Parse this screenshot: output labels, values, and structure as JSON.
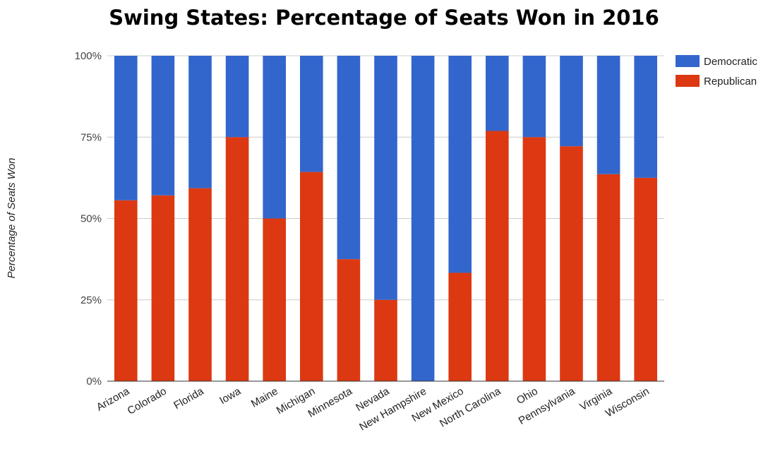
{
  "chart_data": {
    "type": "bar",
    "stacked": true,
    "title": "Swing States: Percentage of Seats Won in 2016",
    "xlabel": "",
    "ylabel": "Percentage of Seats Won",
    "ylim": [
      0,
      100
    ],
    "y_ticks": [
      "0%",
      "25%",
      "50%",
      "75%",
      "100%"
    ],
    "y_tick_values": [
      0,
      25,
      50,
      75,
      100
    ],
    "grid": true,
    "legend_position": "right",
    "categories": [
      "Arizona",
      "Colorado",
      "Florida",
      "Iowa",
      "Maine",
      "Michigan",
      "Minnesota",
      "Nevada",
      "New Hampshire",
      "New Mexico",
      "North Carolina",
      "Ohio",
      "Pennsylvania",
      "Virginia",
      "Wisconsin"
    ],
    "series": [
      {
        "name": "Republican",
        "color": "#dc3912",
        "values": [
          55.6,
          57.1,
          59.3,
          75.0,
          50.0,
          64.3,
          37.5,
          25.0,
          0.0,
          33.3,
          76.9,
          75.0,
          72.2,
          63.6,
          62.5
        ]
      },
      {
        "name": "Democratic",
        "color": "#3366cc",
        "values": [
          44.4,
          42.9,
          40.7,
          25.0,
          50.0,
          35.7,
          62.5,
          75.0,
          100.0,
          66.7,
          23.1,
          25.0,
          27.8,
          36.4,
          37.5
        ]
      }
    ],
    "legend": [
      "Democratic",
      "Republican"
    ]
  }
}
